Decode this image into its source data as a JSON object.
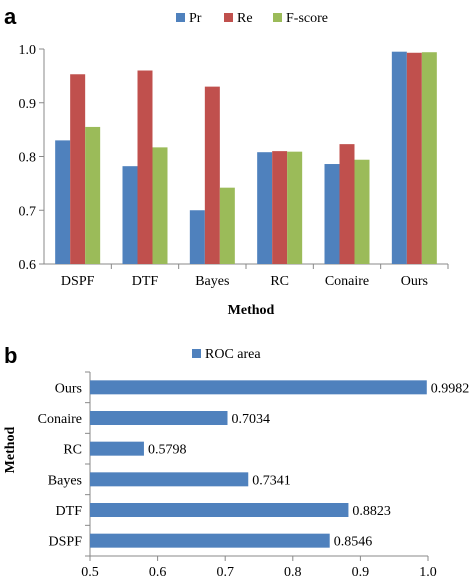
{
  "chart_data": [
    {
      "panel": "a",
      "type": "bar",
      "categories": [
        "DSPF",
        "DTF",
        "Bayes",
        "RC",
        "Conaire",
        "Ours"
      ],
      "series": [
        {
          "name": "Pr",
          "color": "#4f81bd",
          "values": [
            0.83,
            0.782,
            0.7,
            0.808,
            0.786,
            0.995
          ]
        },
        {
          "name": "Re",
          "color": "#c0504d",
          "values": [
            0.953,
            0.96,
            0.93,
            0.81,
            0.823,
            0.993
          ]
        },
        {
          "name": "F-score",
          "color": "#9bbb59",
          "values": [
            0.855,
            0.817,
            0.742,
            0.809,
            0.794,
            0.994
          ]
        }
      ],
      "xlabel": "Method",
      "ylabel": "",
      "ylim": [
        0.6,
        1.0
      ],
      "yticks": [
        "0.6",
        "0.7",
        "0.8",
        "0.9",
        "1.0"
      ],
      "legend": "top",
      "grid": false
    },
    {
      "panel": "b",
      "type": "bar",
      "orientation": "horizontal",
      "categories": [
        "Ours",
        "Conaire",
        "RC",
        "Bayes",
        "DTF",
        "DSPF"
      ],
      "series": [
        {
          "name": "ROC area",
          "color": "#4f81bd",
          "values": [
            0.9982,
            0.7034,
            0.5798,
            0.7341,
            0.8823,
            0.8546
          ]
        }
      ],
      "data_labels": [
        "0.9982",
        "0.7034",
        "0.5798",
        "0.7341",
        "0.8823",
        "0.8546"
      ],
      "xlabel": "",
      "ylabel": "Method",
      "xlim": [
        0.5,
        1.0
      ],
      "xticks": [
        "0.5",
        "0.6",
        "0.7",
        "0.8",
        "0.9",
        "1.0"
      ],
      "legend": "top",
      "grid": false
    }
  ]
}
